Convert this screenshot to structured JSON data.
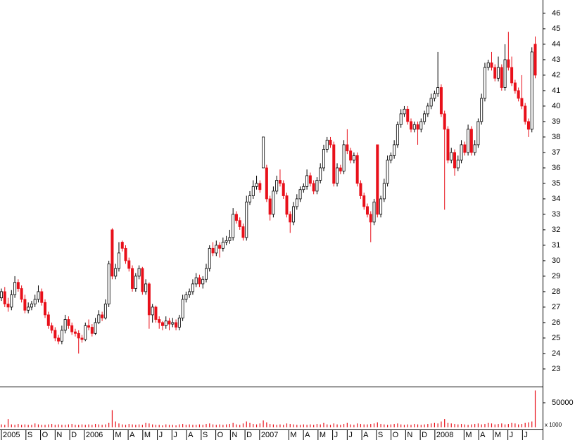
{
  "chart_data": [
    {
      "type": "candlestick",
      "xlim": [
        -0.42,
        161.2
      ],
      "ylim": [
        21.86,
        46.86
      ],
      "yticks": [
        23,
        24,
        25,
        26,
        27,
        28,
        29,
        30,
        31,
        32,
        33,
        34,
        35,
        36,
        37,
        38,
        39,
        40,
        41,
        42,
        43,
        44,
        45,
        46
      ],
      "xticks": [
        {
          "value": 0,
          "label": "2005"
        },
        {
          "value": 7.3,
          "label": "S"
        },
        {
          "value": 11.65,
          "label": "O"
        },
        {
          "value": 16.0,
          "label": "N"
        },
        {
          "value": 20.35,
          "label": "D"
        },
        {
          "value": 24.7,
          "label": "2006"
        },
        {
          "value": 33.4,
          "label": "M"
        },
        {
          "value": 37.75,
          "label": "A"
        },
        {
          "value": 42.1,
          "label": "M"
        },
        {
          "value": 46.45,
          "label": "J"
        },
        {
          "value": 50.8,
          "label": "J"
        },
        {
          "value": 55.15,
          "label": "A"
        },
        {
          "value": 59.5,
          "label": "S"
        },
        {
          "value": 63.85,
          "label": "O"
        },
        {
          "value": 68.2,
          "label": "N"
        },
        {
          "value": 72.55,
          "label": "D"
        },
        {
          "value": 76.9,
          "label": "2007"
        },
        {
          "value": 85.6,
          "label": "M"
        },
        {
          "value": 89.95,
          "label": "A"
        },
        {
          "value": 94.3,
          "label": "M"
        },
        {
          "value": 98.65,
          "label": "J"
        },
        {
          "value": 103.0,
          "label": "J"
        },
        {
          "value": 107.35,
          "label": "A"
        },
        {
          "value": 111.7,
          "label": "S"
        },
        {
          "value": 116.05,
          "label": "O"
        },
        {
          "value": 120.4,
          "label": "N"
        },
        {
          "value": 124.75,
          "label": "D"
        },
        {
          "value": 129.1,
          "label": "2008"
        },
        {
          "value": 137.8,
          "label": "M"
        },
        {
          "value": 142.15,
          "label": "A"
        },
        {
          "value": 146.5,
          "label": "M"
        },
        {
          "value": 150.85,
          "label": "J"
        },
        {
          "value": 155.2,
          "label": "J"
        }
      ],
      "up_color": "#ffffff",
      "down_color": "#e8101a",
      "candles": [
        [
          27.6,
          28.2,
          27.4,
          28.0
        ],
        [
          28.0,
          28.3,
          27.0,
          27.2
        ],
        [
          27.2,
          27.6,
          26.7,
          27.0
        ],
        [
          27.0,
          28.1,
          26.8,
          27.8
        ],
        [
          27.8,
          29.0,
          27.6,
          28.6
        ],
        [
          28.6,
          28.8,
          28.0,
          28.2
        ],
        [
          28.2,
          28.4,
          27.3,
          27.5
        ],
        [
          27.5,
          27.8,
          26.6,
          26.8
        ],
        [
          26.8,
          27.3,
          26.6,
          27.0
        ],
        [
          27.0,
          27.4,
          26.8,
          27.2
        ],
        [
          27.2,
          27.8,
          27.0,
          27.5
        ],
        [
          27.5,
          28.4,
          27.3,
          28.0
        ],
        [
          28.0,
          28.2,
          27.1,
          27.3
        ],
        [
          27.3,
          27.5,
          26.3,
          26.5
        ],
        [
          26.5,
          26.7,
          25.6,
          25.8
        ],
        [
          25.8,
          26.0,
          25.3,
          25.5
        ],
        [
          25.5,
          25.7,
          24.8,
          25.0
        ],
        [
          25.0,
          25.2,
          24.6,
          24.8
        ],
        [
          24.8,
          25.8,
          24.6,
          25.5
        ],
        [
          25.5,
          26.5,
          25.3,
          26.2
        ],
        [
          26.2,
          26.4,
          25.6,
          25.8
        ],
        [
          25.8,
          26.0,
          25.2,
          25.4
        ],
        [
          25.4,
          25.6,
          25.1,
          25.3
        ],
        [
          25.3,
          25.5,
          24.0,
          25.0
        ],
        [
          25.0,
          25.2,
          24.7,
          24.9
        ],
        [
          24.9,
          26.0,
          24.8,
          25.8
        ],
        [
          25.8,
          26.2,
          25.5,
          25.7
        ],
        [
          25.7,
          25.9,
          25.1,
          25.3
        ],
        [
          25.3,
          26.3,
          25.2,
          26.0
        ],
        [
          26.0,
          26.8,
          25.9,
          26.5
        ],
        [
          26.5,
          26.7,
          26.1,
          26.3
        ],
        [
          26.3,
          27.5,
          26.2,
          27.2
        ],
        [
          27.2,
          30.0,
          27.0,
          29.8
        ],
        [
          32.0,
          32.1,
          28.8,
          29.0
        ],
        [
          29.0,
          29.8,
          28.8,
          29.5
        ],
        [
          29.5,
          31.2,
          29.3,
          30.5
        ],
        [
          31.2,
          31.3,
          30.6,
          30.8
        ],
        [
          30.8,
          31.0,
          29.8,
          30.0
        ],
        [
          30.0,
          30.2,
          29.3,
          29.5
        ],
        [
          29.5,
          29.7,
          28.0,
          28.2
        ],
        [
          28.2,
          29.2,
          28.0,
          29.0
        ],
        [
          29.0,
          29.7,
          28.8,
          29.5
        ],
        [
          29.5,
          29.6,
          27.8,
          28.0
        ],
        [
          28.0,
          28.8,
          27.8,
          28.5
        ],
        [
          28.5,
          28.6,
          25.6,
          26.5
        ],
        [
          26.5,
          27.2,
          26.0,
          27.0
        ],
        [
          27.0,
          27.1,
          26.0,
          26.2
        ],
        [
          26.2,
          26.4,
          25.6,
          26.0
        ],
        [
          26.0,
          26.1,
          25.5,
          25.8
        ],
        [
          25.8,
          26.4,
          25.6,
          26.1
        ],
        [
          26.1,
          26.3,
          25.5,
          25.9
        ],
        [
          25.9,
          26.3,
          25.7,
          26.0
        ],
        [
          26.0,
          26.2,
          25.5,
          25.7
        ],
        [
          25.7,
          26.5,
          25.5,
          26.3
        ],
        [
          26.3,
          27.8,
          26.1,
          27.5
        ],
        [
          27.5,
          28.0,
          27.3,
          27.8
        ],
        [
          27.8,
          28.2,
          27.6,
          28.0
        ],
        [
          28.0,
          28.8,
          27.8,
          28.5
        ],
        [
          28.5,
          29.2,
          28.3,
          28.9
        ],
        [
          28.9,
          29.1,
          28.3,
          28.5
        ],
        [
          28.5,
          29.0,
          28.2,
          28.8
        ],
        [
          28.8,
          29.8,
          28.6,
          29.5
        ],
        [
          29.5,
          31.0,
          29.3,
          30.8
        ],
        [
          30.8,
          31.2,
          30.3,
          30.5
        ],
        [
          30.5,
          31.3,
          30.3,
          31.0
        ],
        [
          31.0,
          31.2,
          30.2,
          30.8
        ],
        [
          30.8,
          31.5,
          30.6,
          31.2
        ],
        [
          31.2,
          31.6,
          31.0,
          31.3
        ],
        [
          31.3,
          32.0,
          31.1,
          31.5
        ],
        [
          31.5,
          33.4,
          31.3,
          33.0
        ],
        [
          33.0,
          33.2,
          32.4,
          32.6
        ],
        [
          32.6,
          32.8,
          32.0,
          32.2
        ],
        [
          32.2,
          32.4,
          31.3,
          31.5
        ],
        [
          31.5,
          34.2,
          31.3,
          33.8
        ],
        [
          33.8,
          34.5,
          33.6,
          34.2
        ],
        [
          34.2,
          35.2,
          34.0,
          34.8
        ],
        [
          34.8,
          35.5,
          34.6,
          35.0
        ],
        [
          35.0,
          35.2,
          34.4,
          34.6
        ],
        [
          36.0,
          38.0,
          36.0,
          38.0
        ],
        [
          36.0,
          36.2,
          33.8,
          34.0
        ],
        [
          34.0,
          34.2,
          32.6,
          33.0
        ],
        [
          33.0,
          34.8,
          32.8,
          34.5
        ],
        [
          34.5,
          35.5,
          34.3,
          35.2
        ],
        [
          35.2,
          35.9,
          34.8,
          35.0
        ],
        [
          35.0,
          35.2,
          34.0,
          34.2
        ],
        [
          34.2,
          34.4,
          32.8,
          33.0
        ],
        [
          33.0,
          33.2,
          31.8,
          32.5
        ],
        [
          32.5,
          33.8,
          32.3,
          33.5
        ],
        [
          33.5,
          34.3,
          33.3,
          34.0
        ],
        [
          34.0,
          34.8,
          33.8,
          34.6
        ],
        [
          34.6,
          35.0,
          34.4,
          34.8
        ],
        [
          34.8,
          35.9,
          34.6,
          35.5
        ],
        [
          35.5,
          35.7,
          34.8,
          35.0
        ],
        [
          35.0,
          35.2,
          34.3,
          34.5
        ],
        [
          34.5,
          35.4,
          34.3,
          35.2
        ],
        [
          35.2,
          36.3,
          35.0,
          36.0
        ],
        [
          36.0,
          37.5,
          35.8,
          37.2
        ],
        [
          37.2,
          38.0,
          37.0,
          37.8
        ],
        [
          37.8,
          38.0,
          37.3,
          37.5
        ],
        [
          37.5,
          37.7,
          34.8,
          35.0
        ],
        [
          35.0,
          36.3,
          34.8,
          36.0
        ],
        [
          36.0,
          36.2,
          35.6,
          35.8
        ],
        [
          35.8,
          37.8,
          35.6,
          37.5
        ],
        [
          37.5,
          38.5,
          36.9,
          37.1
        ],
        [
          37.1,
          37.3,
          36.3,
          36.5
        ],
        [
          36.5,
          37.0,
          36.3,
          36.8
        ],
        [
          36.8,
          37.0,
          34.8,
          35.0
        ],
        [
          35.0,
          35.2,
          34.0,
          34.2
        ],
        [
          34.2,
          34.4,
          33.3,
          33.5
        ],
        [
          33.5,
          33.7,
          32.8,
          33.0
        ],
        [
          33.0,
          33.2,
          31.2,
          32.5
        ],
        [
          32.5,
          34.0,
          32.3,
          33.8
        ],
        [
          37.5,
          37.5,
          32.8,
          33.0
        ],
        [
          33.0,
          34.2,
          32.8,
          34.0
        ],
        [
          34.0,
          35.3,
          33.8,
          35.0
        ],
        [
          35.0,
          36.8,
          34.8,
          36.5
        ],
        [
          36.5,
          37.0,
          36.3,
          36.8
        ],
        [
          36.8,
          37.8,
          36.6,
          37.5
        ],
        [
          37.5,
          39.0,
          37.3,
          38.8
        ],
        [
          38.8,
          39.8,
          38.6,
          39.5
        ],
        [
          39.5,
          40.0,
          39.3,
          39.8
        ],
        [
          39.8,
          40.0,
          38.8,
          39.0
        ],
        [
          39.0,
          39.2,
          38.3,
          38.5
        ],
        [
          38.5,
          39.0,
          38.3,
          38.8
        ],
        [
          38.8,
          39.0,
          37.5,
          38.5
        ],
        [
          38.5,
          39.2,
          38.3,
          39.0
        ],
        [
          39.0,
          39.7,
          38.8,
          39.5
        ],
        [
          39.5,
          40.2,
          39.3,
          40.0
        ],
        [
          40.0,
          40.8,
          39.8,
          40.5
        ],
        [
          40.5,
          41.0,
          40.3,
          40.8
        ],
        [
          40.8,
          43.5,
          40.6,
          41.2
        ],
        [
          41.2,
          41.4,
          39.3,
          39.5
        ],
        [
          39.5,
          39.7,
          33.3,
          38.5
        ],
        [
          38.5,
          38.7,
          36.3,
          36.5
        ],
        [
          36.5,
          37.3,
          36.3,
          37.0
        ],
        [
          37.0,
          37.2,
          35.5,
          36.0
        ],
        [
          36.0,
          36.8,
          35.8,
          36.5
        ],
        [
          36.5,
          37.8,
          36.3,
          37.5
        ],
        [
          37.5,
          37.7,
          36.8,
          37.0
        ],
        [
          37.0,
          38.8,
          36.8,
          38.5
        ],
        [
          38.5,
          38.7,
          36.8,
          37.0
        ],
        [
          37.0,
          37.8,
          36.8,
          37.5
        ],
        [
          37.5,
          39.2,
          37.3,
          39.0
        ],
        [
          39.0,
          40.8,
          38.8,
          40.5
        ],
        [
          40.5,
          42.8,
          40.3,
          42.5
        ],
        [
          42.5,
          43.0,
          42.3,
          42.8
        ],
        [
          42.8,
          43.5,
          42.3,
          42.5
        ],
        [
          42.5,
          42.7,
          41.6,
          41.8
        ],
        [
          41.8,
          43.2,
          41.6,
          42.5
        ],
        [
          42.5,
          42.7,
          41.0,
          41.2
        ],
        [
          41.2,
          44.0,
          41.0,
          43.0
        ],
        [
          43.0,
          44.8,
          42.3,
          42.5
        ],
        [
          42.5,
          43.2,
          41.3,
          41.5
        ],
        [
          41.5,
          41.7,
          40.8,
          41.0
        ],
        [
          41.0,
          41.2,
          40.3,
          40.5
        ],
        [
          40.5,
          42.0,
          39.8,
          40.0
        ],
        [
          40.0,
          40.2,
          38.8,
          39.0
        ],
        [
          39.0,
          39.2,
          38.0,
          38.5
        ],
        [
          38.5,
          43.8,
          38.3,
          43.5
        ],
        [
          44.0,
          44.5,
          41.8,
          42.0
        ]
      ]
    },
    {
      "type": "volume",
      "ylim": [
        0,
        80000
      ],
      "yticks": [
        50000
      ],
      "axis_note": "x 1000",
      "color": "#e8101a",
      "values": [
        6000,
        5000,
        17000,
        6000,
        5000,
        7000,
        5000,
        6000,
        5000,
        5000,
        8000,
        6000,
        5000,
        5000,
        6000,
        7000,
        5000,
        6000,
        5000,
        5000,
        6000,
        7000,
        5000,
        5000,
        6000,
        5000,
        6000,
        5000,
        7000,
        6000,
        5000,
        6000,
        9000,
        35000,
        12000,
        8000,
        6000,
        5000,
        7000,
        6000,
        5000,
        6000,
        5000,
        9000,
        8000,
        6000,
        5000,
        5000,
        4000,
        6000,
        5000,
        5000,
        4000,
        6000,
        7000,
        5000,
        6000,
        5000,
        5000,
        6000,
        5000,
        7000,
        8000,
        6000,
        5000,
        6000,
        5000,
        6000,
        7000,
        9000,
        6000,
        5000,
        8000,
        12000,
        9000,
        7000,
        6000,
        8000,
        14000,
        10000,
        7000,
        6000,
        5000,
        6000,
        5000,
        8000,
        7000,
        6000,
        5000,
        5000,
        6000,
        5000,
        6000,
        5000,
        7000,
        6000,
        9000,
        6000,
        5000,
        8000,
        6000,
        5000,
        7000,
        9000,
        6000,
        5000,
        8000,
        7000,
        6000,
        6000,
        7000,
        8000,
        10000,
        7000,
        6000,
        5000,
        6000,
        7000,
        8000,
        6000,
        5000,
        6000,
        5000,
        7000,
        6000,
        5000,
        6000,
        7000,
        8000,
        9000,
        8000,
        12000,
        17000,
        9000,
        8000,
        7000,
        6000,
        7000,
        6000,
        5000,
        6000,
        7000,
        8000,
        6000,
        7000,
        9000,
        8000,
        6000,
        7000,
        8000,
        6000,
        7000,
        9000,
        8000,
        6000,
        7000,
        9000,
        10000,
        12000,
        75000
      ]
    }
  ]
}
